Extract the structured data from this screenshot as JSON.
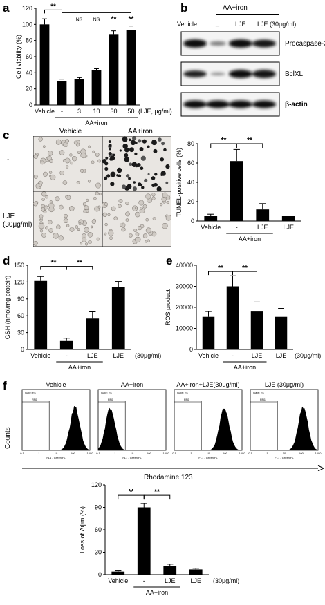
{
  "panels": {
    "a": {
      "letter": "a"
    },
    "b": {
      "letter": "b"
    },
    "c": {
      "letter": "c"
    },
    "d": {
      "letter": "d"
    },
    "e": {
      "letter": "e"
    },
    "f": {
      "letter": "f"
    }
  },
  "blot": {
    "group_label": "AA+iron",
    "lanes": [
      "Vehicle",
      "_",
      "LJE",
      "LJE (30μg/ml)"
    ],
    "proteins": [
      "Procaspase-3",
      "BclXL",
      "β-actin"
    ]
  },
  "micrographs": {
    "col_labels": [
      "Vehicle",
      "AA+iron"
    ],
    "row_labels": [
      "-",
      "LJE",
      "(30μg/ml)"
    ]
  },
  "flow": {
    "panels": [
      {
        "title": "Vehicle",
        "inner_label": "Gate: R1",
        "marker": "RN1",
        "xtitle": "FL1 - Green FL"
      },
      {
        "title": "AA+iron",
        "inner_label": "Gate: R1",
        "marker": "RN1",
        "xtitle": "FL1 - Green FL"
      },
      {
        "title": "AA+iron+LJE(30μg/ml)",
        "inner_label": "Gate: R1",
        "marker": "RN1",
        "xtitle": "FL1 - Green FL"
      },
      {
        "title": "LJE (30μg/ml)",
        "inner_label": "Gate: R1",
        "marker": "RN1",
        "xtitle": "FL1 - Green FL"
      }
    ],
    "ylabel": "Counts",
    "xlabel": "Rhodamine 123",
    "ticks": [
      "0.1",
      "1",
      "10",
      "100",
      "1000"
    ]
  },
  "chart_data": [
    {
      "id": "a",
      "type": "bar",
      "categories": [
        "Vehicle",
        "-",
        "3",
        "10",
        "30",
        "50"
      ],
      "values": [
        100,
        30,
        32,
        43,
        88,
        93
      ],
      "errors": [
        7,
        2,
        2,
        2,
        4,
        5
      ],
      "ylabel": "Cell viability (%)",
      "ylim": [
        0,
        120
      ],
      "yticks": [
        "0",
        "20",
        "40",
        "60",
        "80",
        "100",
        "120"
      ],
      "unit_label": "(LJE, μg/ml)",
      "group_label": "AA+iron",
      "sig": [
        "**",
        "NS",
        "NS",
        "**",
        "**"
      ]
    },
    {
      "id": "c",
      "type": "bar",
      "categories": [
        "Vehicle",
        "-",
        "LJE",
        "LJE"
      ],
      "values": [
        5,
        62,
        12,
        5
      ],
      "errors": [
        2,
        12,
        6,
        0
      ],
      "ylabel": "TUNEL-positive cells (%)",
      "ylim": [
        0,
        80
      ],
      "yticks": [
        "0",
        "20",
        "40",
        "60",
        "80"
      ],
      "group_label": "AA+iron",
      "sig": [
        "**",
        "**"
      ]
    },
    {
      "id": "d",
      "type": "bar",
      "categories": [
        "Vehicle",
        "-",
        "LJE",
        "LJE"
      ],
      "values": [
        122,
        15,
        55,
        111
      ],
      "errors": [
        8,
        5,
        12,
        10
      ],
      "ylabel": "GSH (nmol/mg protein)",
      "ylim": [
        0,
        150
      ],
      "yticks": [
        "0",
        "30",
        "60",
        "90",
        "120",
        "150"
      ],
      "unit_label": "(30μg/ml)",
      "group_label": "AA+iron",
      "sig": [
        "**",
        "**"
      ]
    },
    {
      "id": "e",
      "type": "bar",
      "categories": [
        "Vehicle",
        "-",
        "LJE",
        "LJE"
      ],
      "values": [
        15500,
        30000,
        18000,
        15500
      ],
      "errors": [
        2500,
        5000,
        4500,
        4000
      ],
      "ylabel": "ROS product",
      "ylim": [
        0,
        40000
      ],
      "yticks": [
        "0",
        "10000",
        "20000",
        "30000",
        "40000"
      ],
      "unit_label": "(30μg/ml)",
      "group_label": "AA+iron",
      "sig": [
        "**",
        "**"
      ]
    },
    {
      "id": "f",
      "type": "bar",
      "categories": [
        "Vehicle",
        "-",
        "LJE",
        "LJE"
      ],
      "values": [
        4,
        90,
        12,
        7
      ],
      "errors": [
        1,
        5,
        2,
        1.5
      ],
      "ylabel": "Loss of Δψm (%)",
      "ylim": [
        0,
        120
      ],
      "yticks": [
        "0",
        "30",
        "60",
        "90",
        "120"
      ],
      "unit_label": "(30μg/ml)",
      "group_label": "AA+iron",
      "sig": [
        "**",
        "**"
      ]
    }
  ]
}
